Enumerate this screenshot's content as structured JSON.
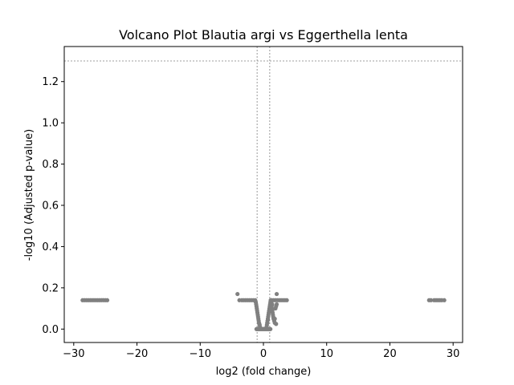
{
  "chart_data": {
    "type": "scatter",
    "title": "Volcano Plot Blautia argi vs Eggerthella lenta",
    "xlabel": "log2 (fold change)",
    "ylabel": "-log10 (Adjusted p-value)",
    "xlim": [
      -31.5,
      31.5
    ],
    "ylim": [
      -0.065,
      1.37
    ],
    "xticks": [
      -30,
      -20,
      -10,
      0,
      10,
      20,
      30
    ],
    "xtick_labels": [
      "−30",
      "−20",
      "−10",
      "0",
      "10",
      "20",
      "30"
    ],
    "yticks": [
      0.0,
      0.2,
      0.4,
      0.6,
      0.8,
      1.0,
      1.2
    ],
    "ytick_labels": [
      "0.0",
      "0.2",
      "0.4",
      "0.6",
      "0.8",
      "1.0",
      "1.2"
    ],
    "threshold_lines": {
      "horizontal_y": 1.3,
      "vertical_x": [
        -1,
        1
      ]
    },
    "grid": false,
    "point_color": "#808080",
    "threshold_color": "#808080",
    "points": {
      "x": [
        -28.6,
        -28.3,
        -28.0,
        -27.7,
        -27.4,
        -27.1,
        -26.8,
        -26.5,
        -26.2,
        -25.9,
        -25.6,
        -25.3,
        -25.0,
        -24.7,
        -4.1,
        -3.8,
        -3.4,
        -3.1,
        -2.8,
        -2.5,
        -2.2,
        -1.9,
        -1.6,
        -1.3,
        -1.2,
        -1.15,
        -1.1,
        -1.05,
        -1.0,
        -0.95,
        -0.9,
        -0.85,
        -0.8,
        -0.75,
        -0.7,
        -0.65,
        -0.6,
        -0.55,
        -0.5,
        -1.1,
        -1.0,
        -0.9,
        -0.8,
        -0.7,
        -0.6,
        -0.5,
        -0.4,
        -0.3,
        -0.2,
        -0.1,
        0.0,
        0.1,
        0.2,
        0.3,
        0.4,
        0.5,
        0.6,
        0.7,
        0.8,
        0.9,
        1.0,
        1.1,
        0.5,
        0.55,
        0.6,
        0.65,
        0.7,
        0.75,
        0.8,
        0.85,
        0.9,
        0.95,
        1.0,
        1.05,
        1.1,
        1.15,
        1.2,
        1.25,
        1.3,
        1.35,
        1.4,
        1.45,
        1.5,
        1.55,
        1.6,
        1.7,
        1.8,
        1.9,
        2.0,
        2.1,
        1.3,
        1.6,
        1.9,
        2.2,
        2.5,
        2.8,
        3.1,
        3.4,
        3.7,
        2.1,
        1.8,
        2.0,
        1.4,
        26.2,
        26.5,
        27.0,
        27.3,
        27.6,
        27.9,
        28.2,
        28.6
      ],
      "y": [
        0.14,
        0.14,
        0.14,
        0.14,
        0.14,
        0.14,
        0.14,
        0.14,
        0.14,
        0.14,
        0.14,
        0.14,
        0.14,
        0.14,
        0.17,
        0.14,
        0.14,
        0.14,
        0.14,
        0.14,
        0.14,
        0.14,
        0.14,
        0.14,
        0.13,
        0.12,
        0.11,
        0.1,
        0.09,
        0.08,
        0.07,
        0.06,
        0.05,
        0.04,
        0.03,
        0.025,
        0.02,
        0.01,
        0.005,
        0.0,
        0.0,
        0.0,
        0.0,
        0.0,
        0.0,
        0.0,
        0.0,
        0.0,
        0.0,
        0.0,
        0.0,
        0.0,
        0.0,
        0.0,
        0.0,
        0.0,
        0.0,
        0.0,
        0.0,
        0.0,
        0.0,
        0.0,
        0.01,
        0.02,
        0.03,
        0.04,
        0.05,
        0.06,
        0.07,
        0.08,
        0.09,
        0.1,
        0.11,
        0.12,
        0.13,
        0.14,
        0.13,
        0.12,
        0.11,
        0.1,
        0.09,
        0.08,
        0.07,
        0.06,
        0.05,
        0.04,
        0.03,
        0.1,
        0.11,
        0.12,
        0.14,
        0.14,
        0.14,
        0.14,
        0.14,
        0.14,
        0.14,
        0.14,
        0.14,
        0.17,
        0.05,
        0.025,
        0.12,
        0.14,
        0.14,
        0.14,
        0.14,
        0.14,
        0.14,
        0.14,
        0.14
      ]
    }
  }
}
